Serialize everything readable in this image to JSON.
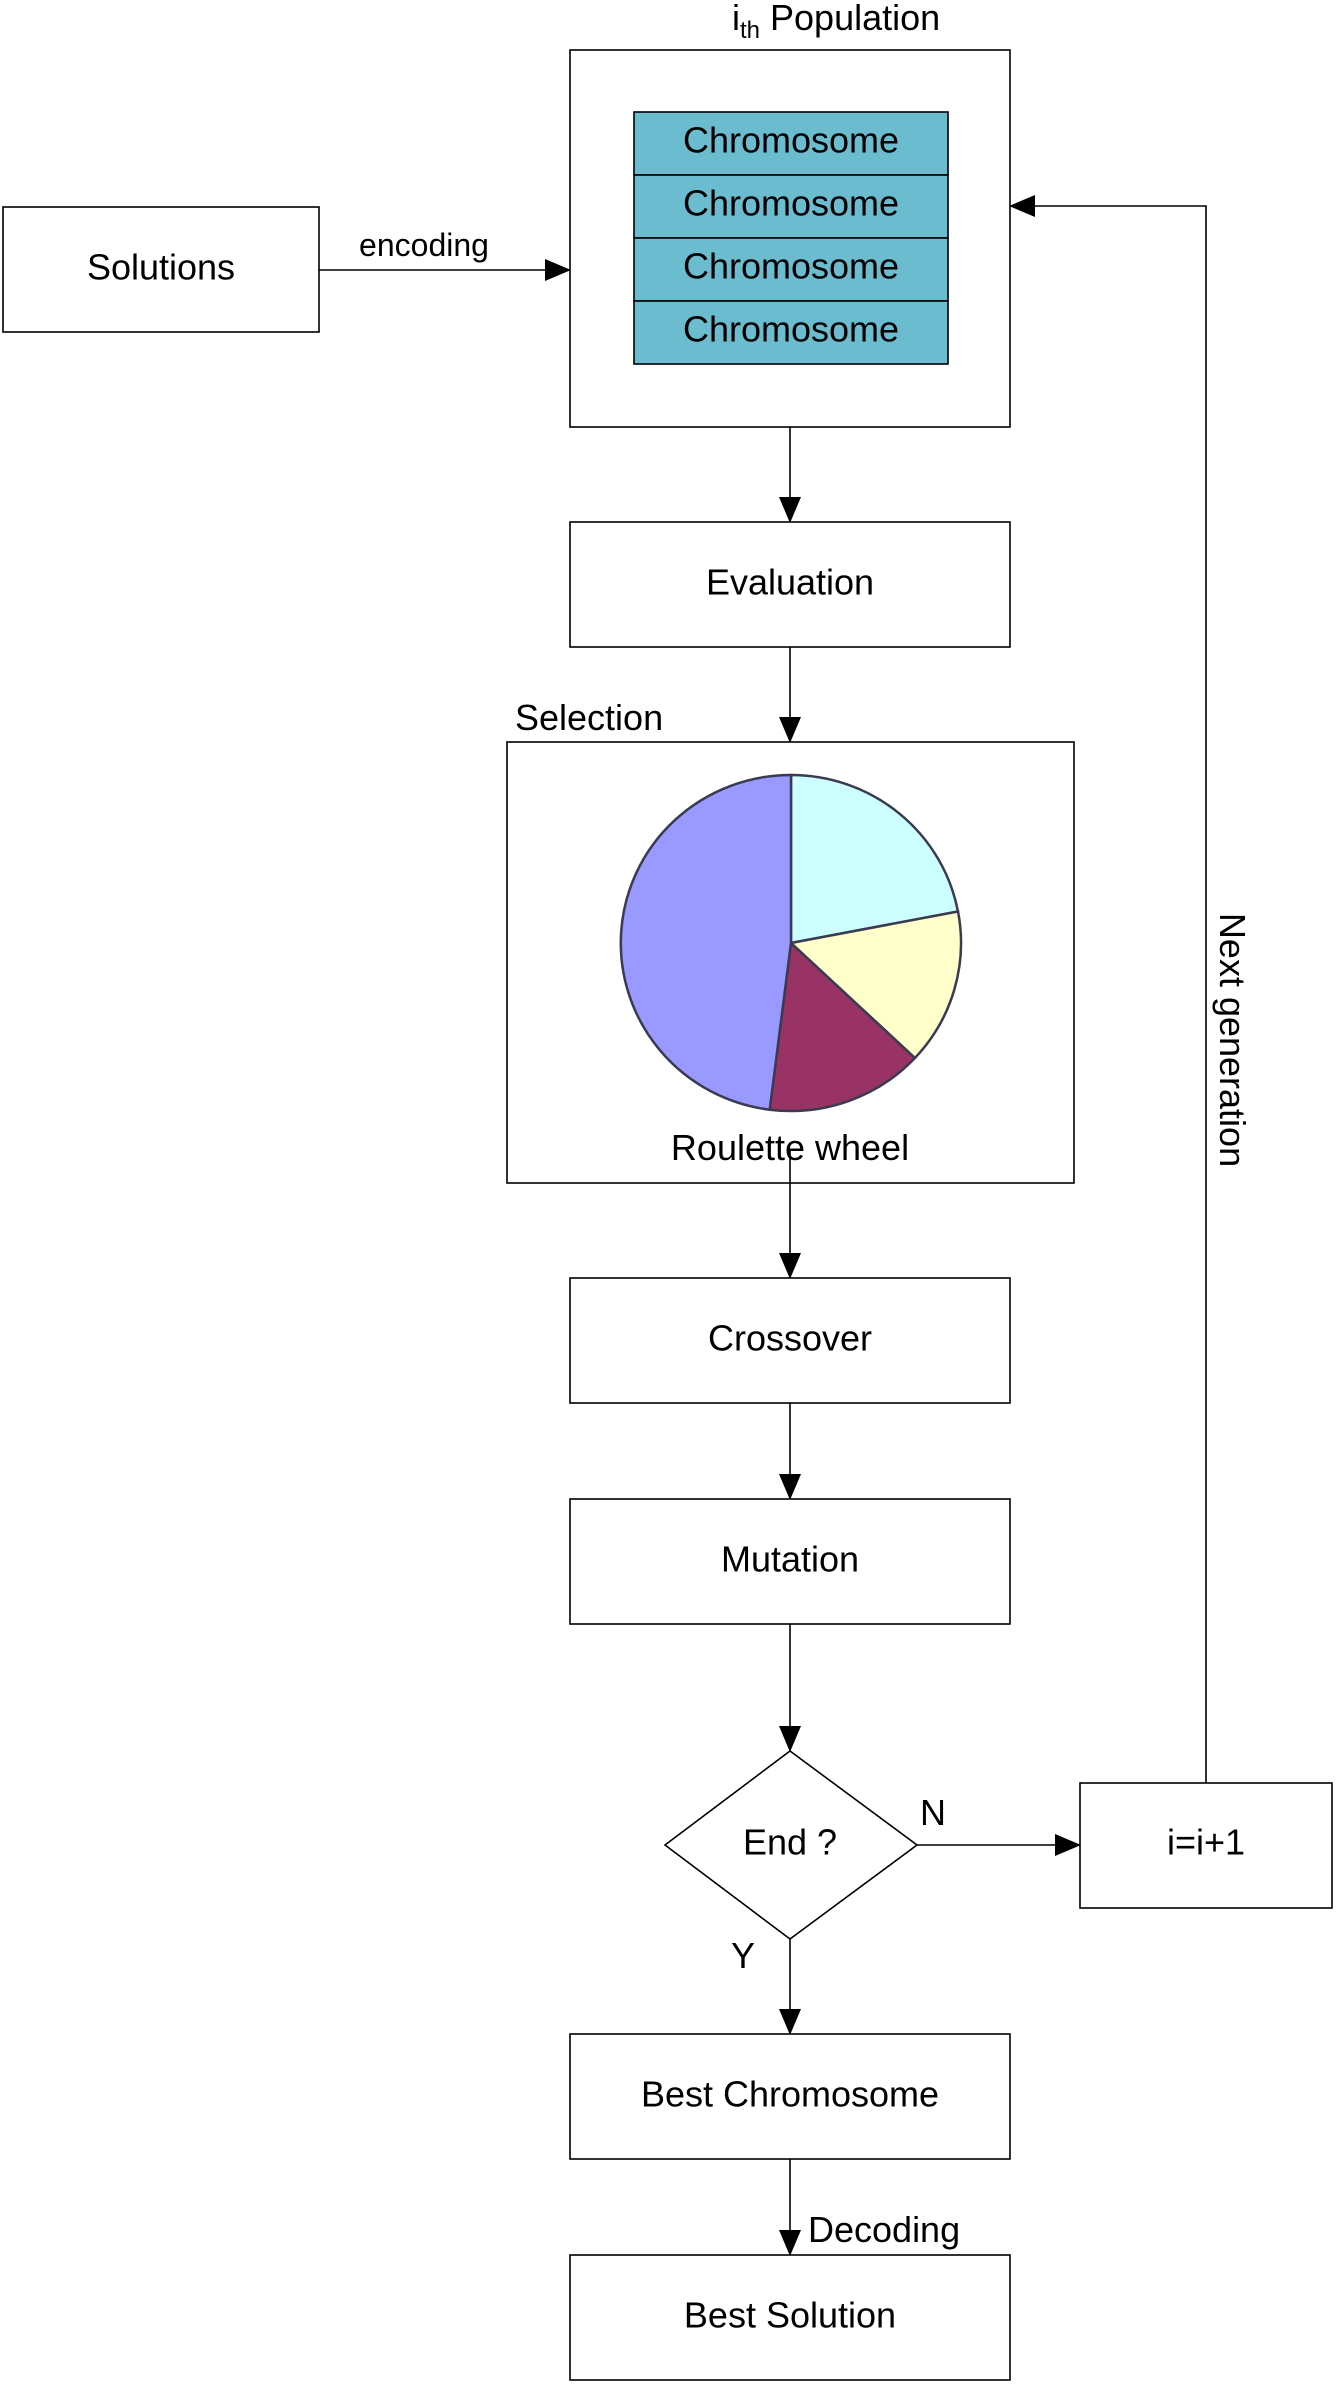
{
  "title": {
    "prefix": "i",
    "subscript": "th",
    "text": "Population"
  },
  "nodes": {
    "solutions": "Solutions",
    "chromosomes": [
      "Chromosome",
      "Chromosome",
      "Chromosome",
      "Chromosome"
    ],
    "evaluation": "Evaluation",
    "selection": "Selection",
    "roulette": "Roulette wheel",
    "crossover": "Crossover",
    "mutation": "Mutation",
    "end_decision": "End ?",
    "increment": "i=i+1",
    "best_chromosome": "Best Chromosome",
    "best_solution": "Best Solution"
  },
  "edges": {
    "encoding": "encoding",
    "no": "N",
    "yes": "Y",
    "next_generation": "Next generation",
    "decoding": "Decoding"
  },
  "roulette_slices": [
    {
      "fraction": 0.22,
      "color": "#CCFFFF"
    },
    {
      "fraction": 0.15,
      "color": "#FFFFCC"
    },
    {
      "fraction": 0.15,
      "color": "#993366"
    },
    {
      "fraction": 0.48,
      "color": "#9999FF"
    }
  ],
  "colors": {
    "chromosome_fill": "#6BBCCF"
  }
}
